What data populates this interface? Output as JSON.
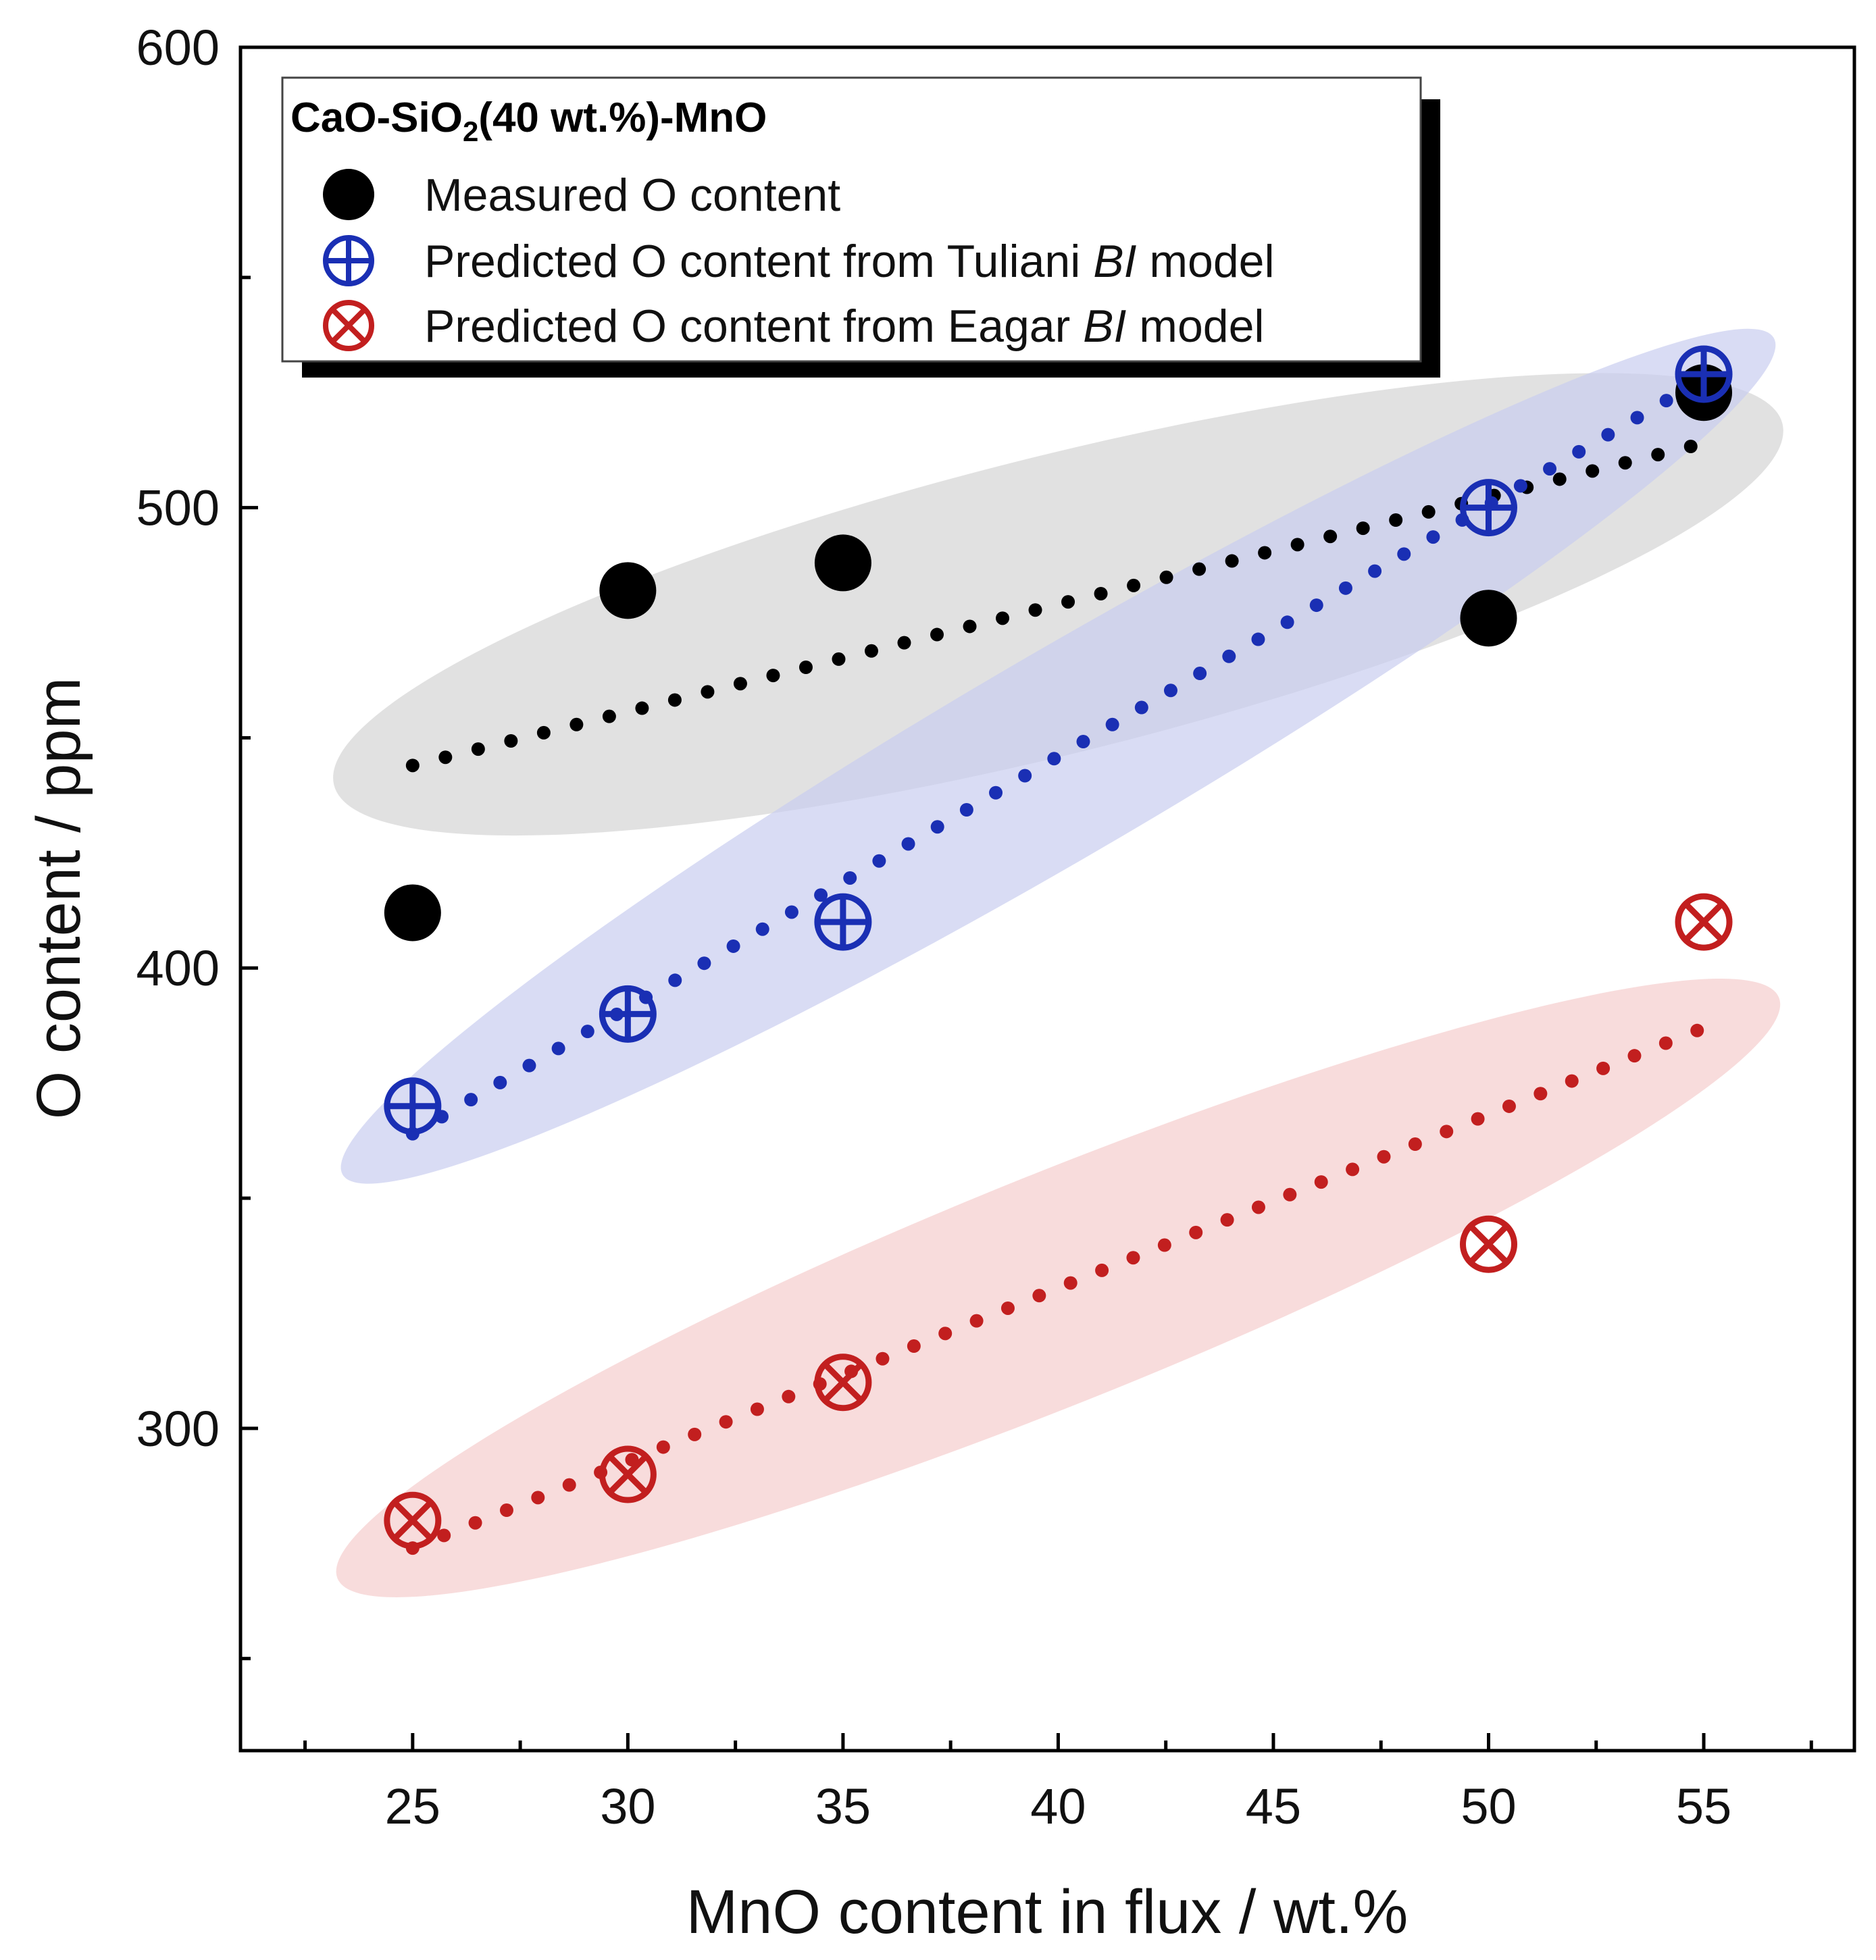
{
  "chart_data": {
    "type": "scatter",
    "title": "",
    "xlabel": "MnO content in flux / wt.%",
    "ylabel": "O content / ppm",
    "xlim": [
      21,
      58.5
    ],
    "ylim": [
      230,
      600
    ],
    "x_ticks": [
      "25",
      "30",
      "35",
      "40",
      "45",
      "50",
      "55"
    ],
    "y_ticks": [
      "300",
      "400",
      "500",
      "600"
    ],
    "legend": {
      "title_parts": [
        "CaO-SiO",
        "2",
        "(40 wt.%)-MnO"
      ],
      "position": "top-left",
      "entries": [
        {
          "text": "Measured O content"
        },
        {
          "text_before": "Predicted O content from Tuliani ",
          "italic": "BI",
          "text_after": " model"
        },
        {
          "text_before": "Predicted O content from Eagar ",
          "italic": "BI",
          "text_after": " model"
        }
      ]
    },
    "series": [
      {
        "name": "Measured O content",
        "marker": "filled-circle",
        "color": "#000000",
        "shade": "#dcdcdc",
        "x": [
          25,
          30,
          35,
          50,
          55
        ],
        "y": [
          412,
          482,
          488,
          476,
          525
        ],
        "trend": {
          "x0": 25,
          "y0": 444,
          "x1": 55,
          "y1": 514
        }
      },
      {
        "name": "Predicted O content from Tuliani BI model",
        "marker": "circle-plus",
        "color": "#1a2fb4",
        "shade": "#c9cdf0",
        "x": [
          25,
          30,
          35,
          50,
          55
        ],
        "y": [
          370,
          390,
          410,
          500,
          529
        ],
        "trend": {
          "x0": 25,
          "y0": 364,
          "x1": 55,
          "y1": 528
        }
      },
      {
        "name": "Predicted O content from Eagar BI model",
        "marker": "circle-x",
        "color": "#c21f1f",
        "shade": "#f6d3d3",
        "x": [
          25,
          30,
          35,
          50,
          55
        ],
        "y": [
          280,
          290,
          310,
          340,
          410
        ],
        "trend": {
          "x0": 25,
          "y0": 274,
          "x1": 55,
          "y1": 387
        }
      }
    ]
  }
}
